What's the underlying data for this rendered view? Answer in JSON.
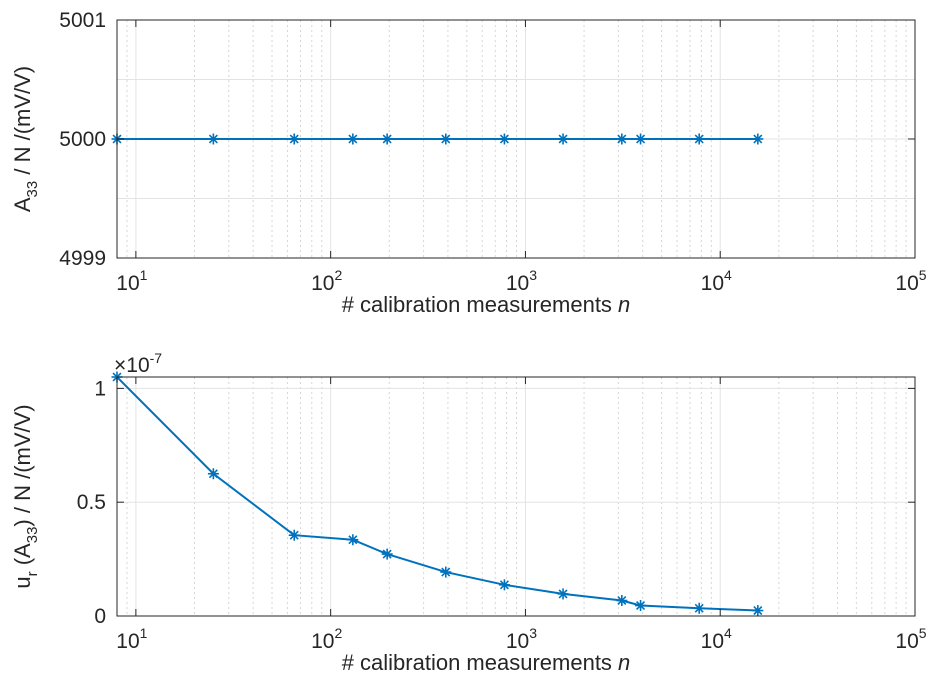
{
  "chart_data": [
    {
      "type": "line",
      "xscale": "log",
      "xlim": [
        8,
        100000
      ],
      "ylim": [
        4999,
        5001
      ],
      "grid": true,
      "marker": "asterisk",
      "color": "#0072BD",
      "xlabel_text": "# calibration measurements ",
      "xlabel_var": "n",
      "ylabel_main": "A",
      "ylabel_sub": "33",
      "ylabel_rest": " / N /(mV/V)",
      "yticks": [
        4999,
        5000,
        5001
      ],
      "ytick_labels": [
        "4999",
        "5000",
        "5001"
      ],
      "xticks": [
        10,
        100,
        1000,
        10000,
        100000
      ],
      "xtick_base": "10",
      "xtick_exps": [
        "1",
        "2",
        "3",
        "4",
        "5"
      ],
      "series": [
        {
          "x": [
            8,
            25,
            65,
            130,
            195,
            390,
            780,
            1560,
            3125,
            3900,
            7800,
            15600
          ],
          "y": [
            5000,
            5000,
            5000,
            5000,
            5000,
            5000,
            5000,
            5000,
            5000,
            5000,
            5000,
            5000
          ]
        }
      ]
    },
    {
      "type": "line",
      "xscale": "log",
      "xlim": [
        8,
        100000
      ],
      "ylim": [
        0,
        1.05
      ],
      "grid": true,
      "marker": "asterisk",
      "color": "#0072BD",
      "exponent_label": "×10",
      "exponent_power": "-7",
      "xlabel_text": "# calibration measurements ",
      "xlabel_var": "n",
      "ylabel_main": "u",
      "ylabel_sub1": "r",
      "ylabel_mid": " (A",
      "ylabel_sub2": "33",
      "ylabel_rest": ") / N /(mV/V)",
      "yticks": [
        0,
        0.5,
        1
      ],
      "ytick_labels": [
        "0",
        "0.5",
        "1"
      ],
      "xticks": [
        10,
        100,
        1000,
        10000,
        100000
      ],
      "xtick_base": "10",
      "xtick_exps": [
        "1",
        "2",
        "3",
        "4",
        "5"
      ],
      "series": [
        {
          "x": [
            8,
            25,
            65,
            130,
            195,
            390,
            780,
            1560,
            3125,
            3900,
            7800,
            15600
          ],
          "y": [
            1.05,
            0.625,
            0.355,
            0.335,
            0.272,
            0.193,
            0.137,
            0.097,
            0.068,
            0.046,
            0.034,
            0.024
          ]
        }
      ]
    }
  ]
}
